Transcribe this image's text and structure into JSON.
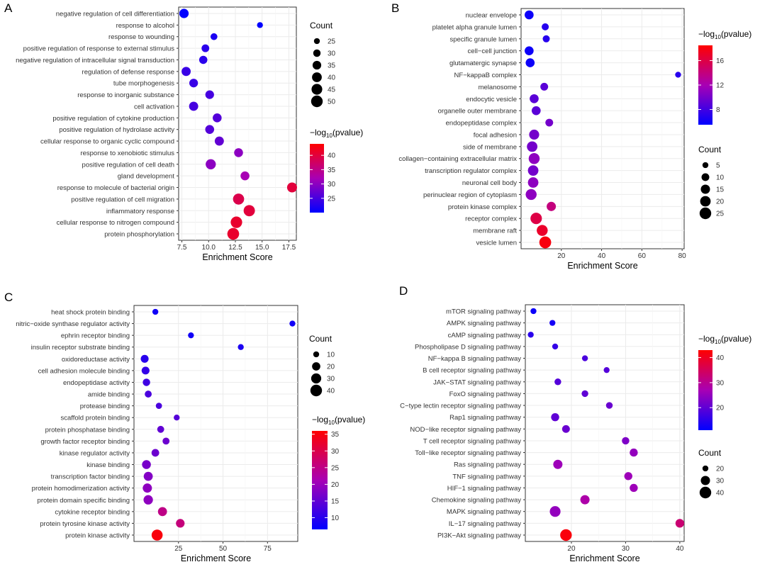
{
  "chart_data": [
    {
      "panel_label": "A",
      "type": "scatter",
      "xlabel": "Enrichment Score",
      "xlim": [
        7.2,
        18.2
      ],
      "xticks": [
        7.5,
        10.0,
        12.5,
        15.0,
        17.5
      ],
      "xtick_labels": [
        "7.5",
        "10.0",
        "12.5",
        "15.0",
        "17.5"
      ],
      "categories": [
        "negative regulation of cell differentiation",
        "response to alcohol",
        "response to wounding",
        "positive regulation of response to external stimulus",
        "negative regulation of intracellular signal transduction",
        "regulation of defense response",
        "tube morphogenesis",
        "response to inorganic substance",
        "cell activation",
        "positive regulation of cytokine production",
        "positive regulation of hydrolase activity",
        "cellular response to organic cyclic compound",
        "response to xenobiotic stimulus",
        "positive regulation of cell death",
        "gland development",
        "response to molecule of bacterial origin",
        "positive regulation of cell migration",
        "inflammatory response",
        "cellular response to nitrogen compound",
        "protein phosphorylation"
      ],
      "x": [
        7.7,
        14.8,
        10.5,
        9.7,
        9.5,
        7.9,
        8.6,
        10.1,
        8.6,
        10.8,
        10.1,
        11.0,
        12.8,
        10.2,
        13.4,
        17.8,
        12.8,
        13.8,
        12.6,
        12.3
      ],
      "count": [
        38,
        22,
        28,
        31,
        33,
        37,
        35,
        35,
        37,
        36,
        36,
        37,
        36,
        42,
        36,
        41,
        47,
        48,
        49,
        51
      ],
      "pvalue": [
        20,
        20,
        22,
        23,
        23,
        24,
        24,
        25,
        25,
        26,
        26,
        27,
        30,
        30,
        32,
        40,
        39,
        40,
        41,
        41
      ],
      "color_legend": {
        "title_prefix": "−log",
        "title_sub": "10",
        "title_suffix": "(pvalue)",
        "min": 20,
        "max": 44,
        "ticks": [
          25,
          30,
          35,
          40
        ],
        "tick_labels": [
          "25",
          "30",
          "35",
          "40"
        ]
      },
      "size_legend": {
        "title": "Count",
        "values": [
          25,
          30,
          35,
          40,
          45,
          50
        ],
        "labels": [
          "25",
          "30",
          "35",
          "40",
          "45",
          "50"
        ]
      }
    },
    {
      "panel_label": "B",
      "type": "scatter",
      "xlabel": "Enrichment Score",
      "xlim": [
        0,
        81
      ],
      "xticks": [
        20,
        40,
        60,
        80
      ],
      "xtick_labels": [
        "20",
        "40",
        "60",
        "80"
      ],
      "categories": [
        "nuclear envelope",
        "platelet alpha granule lumen",
        "specific granule lumen",
        "cell−cell junction",
        "glutamatergic synapse",
        "NF−kappaB complex",
        "melanosome",
        "endocytic vesicle",
        "organelle outer membrane",
        "endopeptidase complex",
        "focal adhesion",
        "side of membrane",
        "collagen−containing extracellular matrix",
        "transcription regulator complex",
        "neuronal cell body",
        "perinuclear region of cytoplasm",
        "protein kinase complex",
        "receptor complex",
        "membrane raft",
        "vesicle lumen"
      ],
      "x": [
        4,
        12,
        12.5,
        4,
        4.5,
        78,
        11.5,
        6.5,
        7.5,
        14,
        6.5,
        5.5,
        6.5,
        6,
        6,
        5,
        15,
        7.5,
        10.5,
        12
      ],
      "count": [
        14,
        8,
        8,
        14,
        14,
        3,
        10,
        14,
        14,
        10,
        18,
        20,
        22,
        20,
        20,
        22,
        15,
        24,
        22,
        26
      ],
      "pvalue": [
        6,
        7,
        7,
        6,
        6,
        7,
        9,
        9,
        9,
        10,
        10,
        10,
        11,
        10,
        11,
        11,
        14,
        16,
        17,
        18
      ],
      "color_legend": {
        "title_prefix": "−log",
        "title_sub": "10",
        "title_suffix": "(pvalue)",
        "min": 5.5,
        "max": 18.5,
        "ticks": [
          8,
          12,
          16
        ],
        "tick_labels": [
          "8",
          "12",
          "16"
        ]
      },
      "size_legend": {
        "title": "Count",
        "values": [
          5,
          10,
          15,
          20,
          25
        ],
        "labels": [
          "5",
          "10",
          "15",
          "20",
          "25"
        ]
      }
    },
    {
      "panel_label": "C",
      "type": "scatter",
      "xlabel": "Enrichment Score",
      "xlim": [
        0,
        92
      ],
      "xticks": [
        25,
        50,
        75
      ],
      "xtick_labels": [
        "25",
        "50",
        "75"
      ],
      "categories": [
        "heat shock protein binding",
        "nitric−oxide synthase regulator activity",
        "ephrin receptor binding",
        "insulin receptor substrate binding",
        "oxidoreductase activity",
        "cell adhesion molecule binding",
        "endopeptidase activity",
        "amide binding",
        "protease binding",
        "scaffold protein binding",
        "protein phosphatase binding",
        "growth factor receptor binding",
        "kinase regulator activity",
        "kinase binding",
        "transcription factor binding",
        "protein homodimerization activity",
        "protein domain specific binding",
        "cytokine receptor binding",
        "protein tyrosine kinase activity",
        "protein kinase activity"
      ],
      "x": [
        12,
        89,
        32,
        60,
        6,
        6.5,
        7,
        8,
        14,
        24,
        15,
        18,
        12,
        7,
        8,
        7.5,
        8,
        16,
        26,
        13
      ],
      "count": [
        10,
        5,
        7,
        6,
        18,
        18,
        16,
        14,
        11,
        10,
        14,
        14,
        17,
        23,
        24,
        25,
        26,
        24,
        22,
        36
      ],
      "pvalue": [
        8,
        8,
        8,
        9,
        10,
        11,
        12,
        13,
        13,
        14,
        15,
        16,
        16,
        17,
        18,
        19,
        19,
        25,
        26,
        35
      ],
      "color_legend": {
        "title_prefix": "−log",
        "title_sub": "10",
        "title_suffix": "(pvalue)",
        "min": 6.5,
        "max": 36,
        "ticks": [
          10,
          15,
          20,
          25,
          30,
          35
        ],
        "tick_labels": [
          "10",
          "15",
          "20",
          "25",
          "30",
          "35"
        ]
      },
      "size_legend": {
        "title": "Count",
        "values": [
          10,
          20,
          30,
          40
        ],
        "labels": [
          "10",
          "20",
          "30",
          "40"
        ]
      }
    },
    {
      "panel_label": "D",
      "type": "scatter",
      "xlabel": "Enrichment Score",
      "xlim": [
        11.5,
        40.8
      ],
      "xticks": [
        20,
        30,
        40
      ],
      "xtick_labels": [
        "20",
        "30",
        "40"
      ],
      "categories": [
        "mTOR signaling pathway",
        "AMPK signaling pathway",
        "cAMP signaling pathway",
        "Phospholipase D signaling pathway",
        "NF−kappa B signaling pathway",
        "B cell receptor signaling pathway",
        "JAK−STAT signaling pathway",
        "FoxO signaling pathway",
        "C−type lectin receptor signaling pathway",
        "Rap1 signaling pathway",
        "NOD−like receptor signaling pathway",
        "T cell receptor signaling pathway",
        "Toll−like receptor signaling pathway",
        "Ras signaling pathway",
        "TNF signaling pathway",
        "HIF−1 signaling pathway",
        "Chemokine signaling pathway",
        "MAPK signaling pathway",
        "IL−17 signaling pathway",
        "PI3K−Akt signaling pathway"
      ],
      "x": [
        13,
        16.5,
        12.5,
        17,
        22.5,
        26.5,
        17.5,
        22.5,
        27,
        17,
        19,
        30,
        31.5,
        17.5,
        30.5,
        31.5,
        22.5,
        17,
        40,
        19
      ],
      "count": [
        12,
        12,
        18,
        18,
        18,
        18,
        22,
        22,
        22,
        26,
        25,
        24,
        26,
        30,
        26,
        26,
        30,
        36,
        28,
        40
      ],
      "pvalue": [
        12,
        13,
        15,
        16,
        18,
        19,
        19,
        20,
        21,
        20,
        21,
        23,
        25,
        26,
        26,
        26,
        28,
        25,
        33,
        42
      ],
      "color_legend": {
        "title_prefix": "−log",
        "title_sub": "10",
        "title_suffix": "(pvalue)",
        "min": 11,
        "max": 43,
        "ticks": [
          20,
          30,
          40
        ],
        "tick_labels": [
          "20",
          "30",
          "40"
        ]
      },
      "size_legend": {
        "title": "Count",
        "values": [
          20,
          30,
          40
        ],
        "labels": [
          "20",
          "30",
          "40"
        ]
      }
    }
  ]
}
